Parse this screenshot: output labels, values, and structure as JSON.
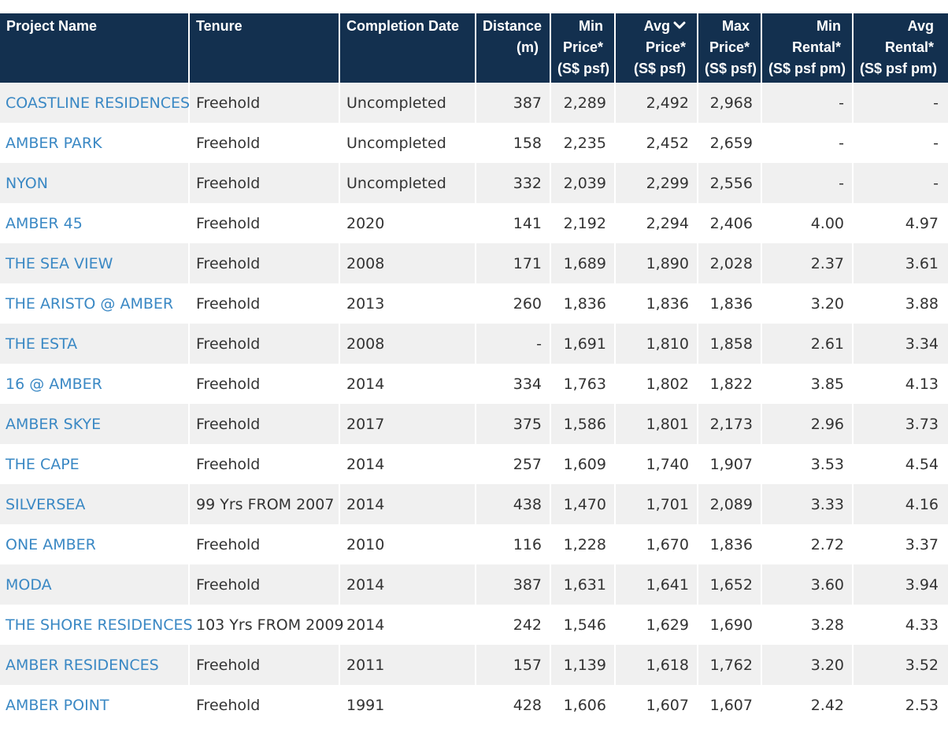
{
  "columns": [
    {
      "key": "name",
      "lines": [
        "Project Name"
      ]
    },
    {
      "key": "tenure",
      "lines": [
        "Tenure"
      ]
    },
    {
      "key": "completion",
      "lines": [
        "Completion Date"
      ]
    },
    {
      "key": "distance",
      "lines": [
        "Distance",
        "(m)"
      ]
    },
    {
      "key": "min_price",
      "lines": [
        "Min",
        "Price*",
        "(S$ psf)"
      ]
    },
    {
      "key": "avg_price",
      "lines": [
        "Avg",
        "Price*",
        "(S$ psf)"
      ],
      "sort": "chevron-down-icon"
    },
    {
      "key": "max_price",
      "lines": [
        "Max",
        "Price*",
        "(S$ psf)"
      ]
    },
    {
      "key": "min_rental",
      "lines": [
        "Min",
        "Rental*",
        "(S$ psf pm)"
      ]
    },
    {
      "key": "avg_rental",
      "lines": [
        "Avg",
        "Rental*",
        "(S$ psf pm)"
      ]
    }
  ],
  "rows": [
    {
      "name": "COASTLINE RESIDENCES",
      "tenure": "Freehold",
      "completion": "Uncompleted",
      "distance": "387",
      "min_price": "2,289",
      "avg_price": "2,492",
      "max_price": "2,968",
      "min_rental": "-",
      "avg_rental": "-"
    },
    {
      "name": "AMBER PARK",
      "tenure": "Freehold",
      "completion": "Uncompleted",
      "distance": "158",
      "min_price": "2,235",
      "avg_price": "2,452",
      "max_price": "2,659",
      "min_rental": "-",
      "avg_rental": "-"
    },
    {
      "name": "NYON",
      "tenure": "Freehold",
      "completion": "Uncompleted",
      "distance": "332",
      "min_price": "2,039",
      "avg_price": "2,299",
      "max_price": "2,556",
      "min_rental": "-",
      "avg_rental": "-"
    },
    {
      "name": "AMBER 45",
      "tenure": "Freehold",
      "completion": "2020",
      "distance": "141",
      "min_price": "2,192",
      "avg_price": "2,294",
      "max_price": "2,406",
      "min_rental": "4.00",
      "avg_rental": "4.97"
    },
    {
      "name": "THE SEA VIEW",
      "tenure": "Freehold",
      "completion": "2008",
      "distance": "171",
      "min_price": "1,689",
      "avg_price": "1,890",
      "max_price": "2,028",
      "min_rental": "2.37",
      "avg_rental": "3.61"
    },
    {
      "name": "THE ARISTO @ AMBER",
      "tenure": "Freehold",
      "completion": "2013",
      "distance": "260",
      "min_price": "1,836",
      "avg_price": "1,836",
      "max_price": "1,836",
      "min_rental": "3.20",
      "avg_rental": "3.88"
    },
    {
      "name": "THE ESTA",
      "tenure": "Freehold",
      "completion": "2008",
      "distance": "-",
      "min_price": "1,691",
      "avg_price": "1,810",
      "max_price": "1,858",
      "min_rental": "2.61",
      "avg_rental": "3.34"
    },
    {
      "name": "16 @ AMBER",
      "tenure": "Freehold",
      "completion": "2014",
      "distance": "334",
      "min_price": "1,763",
      "avg_price": "1,802",
      "max_price": "1,822",
      "min_rental": "3.85",
      "avg_rental": "4.13"
    },
    {
      "name": "AMBER SKYE",
      "tenure": "Freehold",
      "completion": "2017",
      "distance": "375",
      "min_price": "1,586",
      "avg_price": "1,801",
      "max_price": "2,173",
      "min_rental": "2.96",
      "avg_rental": "3.73"
    },
    {
      "name": "THE CAPE",
      "tenure": "Freehold",
      "completion": "2014",
      "distance": "257",
      "min_price": "1,609",
      "avg_price": "1,740",
      "max_price": "1,907",
      "min_rental": "3.53",
      "avg_rental": "4.54"
    },
    {
      "name": "SILVERSEA",
      "tenure": "99 Yrs FROM 2007",
      "completion": "2014",
      "distance": "438",
      "min_price": "1,470",
      "avg_price": "1,701",
      "max_price": "2,089",
      "min_rental": "3.33",
      "avg_rental": "4.16"
    },
    {
      "name": "ONE AMBER",
      "tenure": "Freehold",
      "completion": "2010",
      "distance": "116",
      "min_price": "1,228",
      "avg_price": "1,670",
      "max_price": "1,836",
      "min_rental": "2.72",
      "avg_rental": "3.37"
    },
    {
      "name": "MODA",
      "tenure": "Freehold",
      "completion": "2014",
      "distance": "387",
      "min_price": "1,631",
      "avg_price": "1,641",
      "max_price": "1,652",
      "min_rental": "3.60",
      "avg_rental": "3.94"
    },
    {
      "name": "THE SHORE RESIDENCES",
      "tenure": "103 Yrs FROM 2009",
      "completion": "2014",
      "distance": "242",
      "min_price": "1,546",
      "avg_price": "1,629",
      "max_price": "1,690",
      "min_rental": "3.28",
      "avg_rental": "4.33"
    },
    {
      "name": "AMBER RESIDENCES",
      "tenure": "Freehold",
      "completion": "2011",
      "distance": "157",
      "min_price": "1,139",
      "avg_price": "1,618",
      "max_price": "1,762",
      "min_rental": "3.20",
      "avg_rental": "3.52"
    },
    {
      "name": "AMBER POINT",
      "tenure": "Freehold",
      "completion": "1991",
      "distance": "428",
      "min_price": "1,606",
      "avg_price": "1,607",
      "max_price": "1,607",
      "min_rental": "2.42",
      "avg_rental": "2.53"
    }
  ],
  "colors": {
    "header_bg": "#13304f",
    "link": "#3a88c4",
    "stripe": "#f0f0f0",
    "text": "#333333"
  }
}
